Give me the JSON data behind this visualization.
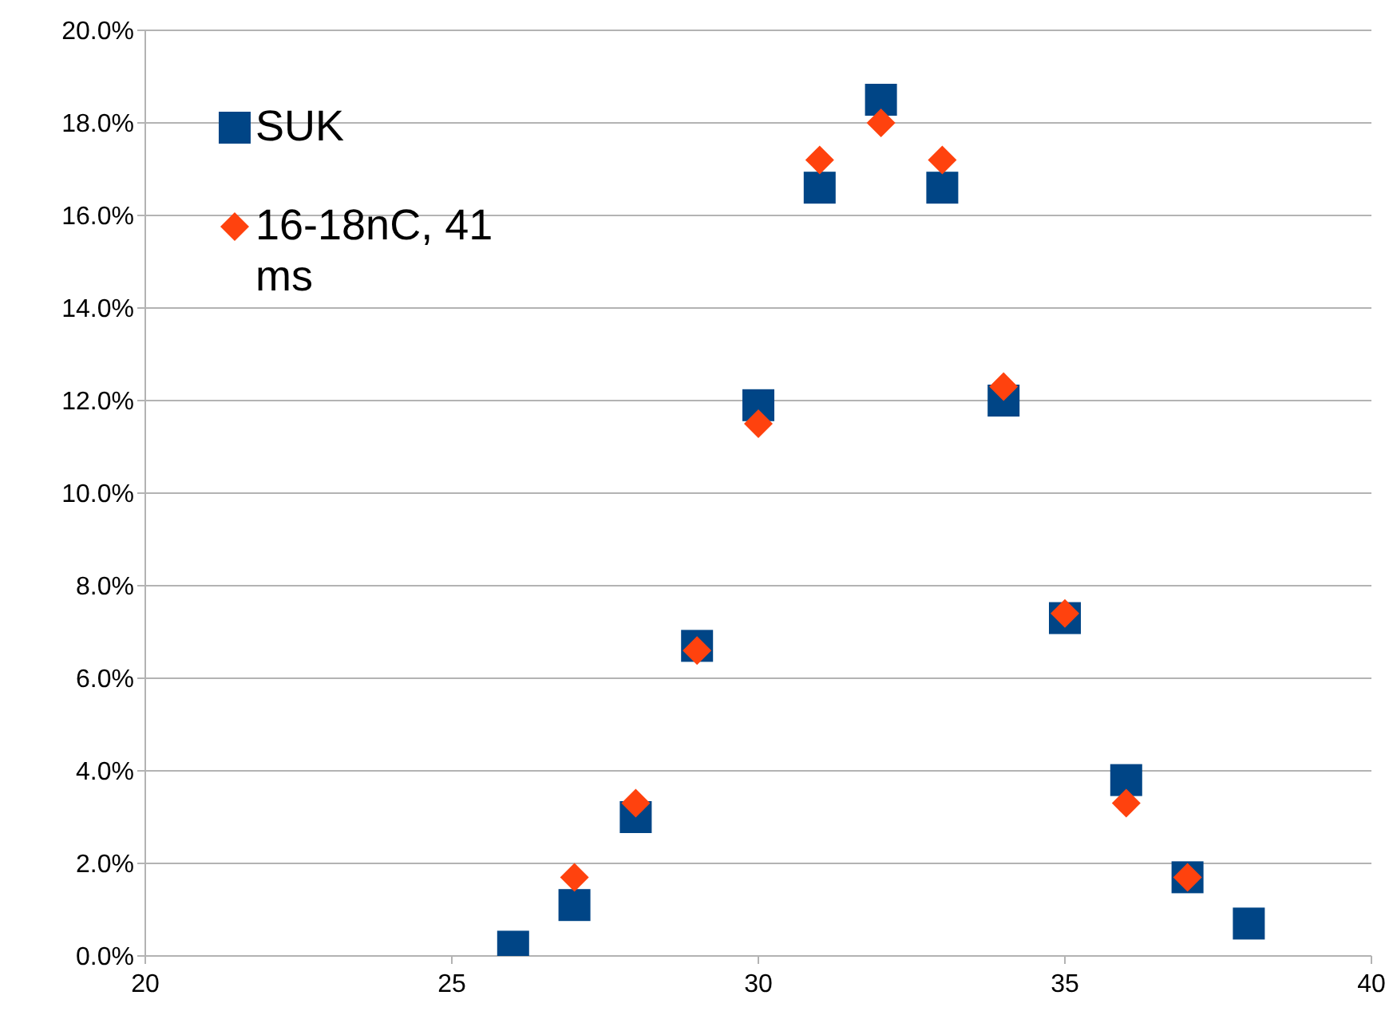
{
  "chart_data": {
    "type": "scatter",
    "xlim": [
      20,
      40
    ],
    "xticks": [
      20,
      25,
      30,
      35,
      40
    ],
    "ylim": [
      0,
      20
    ],
    "yticks": [
      {
        "value": 0,
        "label": "0.0%"
      },
      {
        "value": 2,
        "label": "2.0%"
      },
      {
        "value": 4,
        "label": "4.0%"
      },
      {
        "value": 6,
        "label": "6.0%"
      },
      {
        "value": 8,
        "label": "8.0%"
      },
      {
        "value": 10,
        "label": "10.0%"
      },
      {
        "value": 12,
        "label": "12.0%"
      },
      {
        "value": 14,
        "label": "14.0%"
      },
      {
        "value": 16,
        "label": "16.0%"
      },
      {
        "value": 18,
        "label": "18.0%"
      },
      {
        "value": 20,
        "label": "20.0%"
      }
    ],
    "grid": "y",
    "legend": "top left",
    "series": [
      {
        "name": "SUK",
        "color": "#004586",
        "marker": "square",
        "x": [
          26,
          27,
          28,
          29,
          30,
          31,
          32,
          33,
          34,
          35,
          36,
          37,
          38
        ],
        "values": [
          0.2,
          1.1,
          3.0,
          6.7,
          11.9,
          16.6,
          18.5,
          16.6,
          12.0,
          7.3,
          3.8,
          1.7,
          0.7
        ]
      },
      {
        "name": "16-18nC, 41 ms",
        "color": "#ff420e",
        "marker": "diamond",
        "x": [
          27,
          28,
          29,
          30,
          31,
          32,
          33,
          34,
          35,
          36,
          37
        ],
        "values": [
          1.7,
          3.3,
          6.6,
          11.5,
          17.2,
          18.0,
          17.2,
          12.3,
          7.4,
          3.3,
          1.7
        ]
      }
    ]
  }
}
